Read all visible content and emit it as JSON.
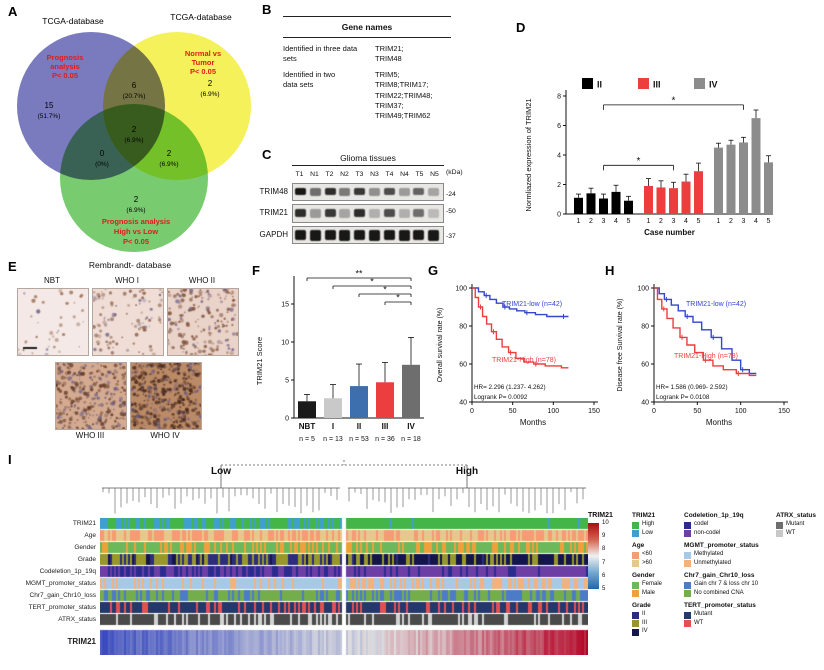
{
  "panels": {
    "a": "A",
    "b": "B",
    "c": "C",
    "d": "D",
    "e": "E",
    "f": "F",
    "g": "G",
    "h": "H",
    "i": "I"
  },
  "venn": {
    "top_left_title": "TCGA-database",
    "top_right_title": "TCGA-database",
    "blue_label": [
      "Prognosis",
      "analysis",
      "P< 0.05"
    ],
    "yellow_label": [
      "Normal vs",
      "Tumor",
      "P< 0.05"
    ],
    "green_label": [
      "Prognosis analysis",
      "High vs Low",
      "P< 0.05"
    ],
    "blue_only": [
      "15",
      "(51.7%)"
    ],
    "blue_yellow": [
      "6",
      "(20.7%)"
    ],
    "yellow_only": [
      "2",
      "(6.9%)"
    ],
    "center": [
      "2",
      "(6.9%)"
    ],
    "blue_green": [
      "0",
      "(0%)"
    ],
    "yellow_green": [
      "2",
      "(6.9%)"
    ],
    "green_only": [
      "2",
      "(6.9%)"
    ],
    "colors": {
      "blue": "#6b6db8",
      "yellow": "#f3ef3d",
      "green": "#62c257"
    }
  },
  "gene_table": {
    "header": "Gene names",
    "row1_label": "Identified in three data\nsets",
    "row1_genes": "TRIM21;\nTRIM48",
    "row2_label": "Identified in two\ndata sets",
    "row2_genes": "TRIM5;\nTRIM8;TRIM17;\nTRIM22;TRIM48;\nTRIM37;\nTRIM49;TRIM62"
  },
  "blot": {
    "title": "Glioma tissues",
    "kda": "(kDa)",
    "lanes": [
      "T1",
      "N1",
      "T2",
      "N2",
      "T3",
      "N3",
      "T4",
      "N4",
      "T5",
      "N5"
    ],
    "rows": [
      {
        "label": "TRIM48",
        "marker": "24",
        "intensities": [
          0.95,
          0.55,
          0.85,
          0.5,
          0.8,
          0.4,
          0.7,
          0.35,
          0.6,
          0.3
        ]
      },
      {
        "label": "TRIM21",
        "marker": "50",
        "intensities": [
          0.85,
          0.35,
          0.8,
          0.3,
          0.85,
          0.25,
          0.7,
          0.25,
          0.55,
          0.2
        ]
      },
      {
        "label": "GAPDH",
        "marker": "37",
        "intensities": [
          0.95,
          0.95,
          0.95,
          0.95,
          0.95,
          0.95,
          0.95,
          0.95,
          0.95,
          0.95
        ]
      }
    ]
  },
  "ihc": {
    "title": "Rembrandt- database",
    "images": [
      {
        "label": "NBT",
        "bg": "#f4e9e6",
        "dot": "#9a6a50",
        "density": 40
      },
      {
        "label": "WHO I",
        "bg": "#efddd6",
        "dot": "#8a5a40",
        "density": 100
      },
      {
        "label": "WHO II",
        "bg": "#ead3c8",
        "dot": "#7a4a33",
        "density": 170
      },
      {
        "label": "WHO III",
        "bg": "#d4ab91",
        "dot": "#5f3722",
        "density": 280
      },
      {
        "label": "WHO IV",
        "bg": "#bb8a66",
        "dot": "#45281a",
        "density": 400
      }
    ]
  },
  "chart_data": [
    {
      "id": "trim21_expression_bars",
      "type": "bar",
      "ylabel": "Normliazed expression of TRIM21",
      "xlabel": "Case number",
      "ylim": [
        0,
        8
      ],
      "yticks": [
        0,
        2,
        4,
        6,
        8
      ],
      "xticklabels": [
        "1",
        "2",
        "3",
        "4",
        "5"
      ],
      "groups": [
        {
          "name": "II",
          "color": "#000000",
          "values": [
            1.1,
            1.4,
            1.05,
            1.5,
            0.9
          ],
          "errors": [
            0.25,
            0.35,
            0.3,
            0.45,
            0.3
          ]
        },
        {
          "name": "III",
          "color": "#ec3e3e",
          "values": [
            1.9,
            1.8,
            1.75,
            2.2,
            2.9
          ],
          "errors": [
            0.5,
            0.45,
            0.4,
            0.5,
            0.55
          ]
        },
        {
          "name": "IV",
          "color": "#8c8c8c",
          "values": [
            4.5,
            4.7,
            4.85,
            6.5,
            3.5
          ],
          "errors": [
            0.3,
            0.3,
            0.35,
            0.55,
            0.45
          ]
        }
      ],
      "significance": [
        {
          "from_group": 0,
          "to_group": 1,
          "label": "*",
          "height": 3.3
        },
        {
          "from_group": 0,
          "to_group": 2,
          "label": "*",
          "height": 7.4
        }
      ]
    },
    {
      "id": "trim21_score_bars",
      "type": "bar",
      "ylabel": "TRIM21 Score",
      "ylim": [
        0,
        15
      ],
      "yticks": [
        0,
        5,
        10,
        15
      ],
      "categories": [
        "NBT",
        "I",
        "II",
        "III",
        "IV"
      ],
      "values": [
        2.2,
        2.6,
        4.2,
        4.7,
        7.0
      ],
      "errors": [
        0.9,
        1.8,
        2.9,
        2.6,
        3.6
      ],
      "colors": [
        "#1a1a1a",
        "#c9c9c9",
        "#3d6fae",
        "#ec3e3e",
        "#6e6e6e"
      ],
      "n_labels": [
        "n = 5",
        "n = 13",
        "n = 53",
        "n = 36",
        "n = 18"
      ],
      "significance": [
        {
          "from": 0,
          "to": 4,
          "label": "**"
        },
        {
          "from": 1,
          "to": 4,
          "label": "*"
        },
        {
          "from": 2,
          "to": 4,
          "label": "*"
        },
        {
          "from": 3,
          "to": 4,
          "label": "*"
        }
      ]
    },
    {
      "id": "overall_survival",
      "type": "line",
      "ylabel": "Overall survival rate (%)",
      "xlabel": "Months",
      "xlim": [
        0,
        150
      ],
      "xticks": [
        0,
        50,
        100,
        150
      ],
      "ylim": [
        40,
        100
      ],
      "yticks": [
        40,
        60,
        80,
        100
      ],
      "series": [
        {
          "name": "TRIM21-low (n=42)",
          "color": "#3346cc",
          "x": [
            0,
            8,
            15,
            22,
            30,
            38,
            46,
            55,
            65,
            78,
            92,
            110
          ],
          "y": [
            100,
            98,
            96,
            94,
            92,
            90,
            89,
            88,
            87,
            86,
            85,
            85
          ]
        },
        {
          "name": "TRIM21-High (n=78)",
          "color": "#ec3e3e",
          "x": [
            0,
            4,
            8,
            13,
            18,
            24,
            30,
            37,
            45,
            54,
            64,
            76,
            90,
            110
          ],
          "y": [
            100,
            95,
            90,
            85,
            81,
            77,
            73,
            69,
            66,
            63,
            61,
            60,
            59,
            58
          ]
        }
      ],
      "annotations": [
        "HR= 2.296 (1.237- 4.262)",
        "Logrank P= 0.0092"
      ]
    },
    {
      "id": "disease_free_survival",
      "type": "line",
      "ylabel": "Disease free Survival rate (%)",
      "xlabel": "Months",
      "xlim": [
        0,
        150
      ],
      "xticks": [
        0,
        50,
        100,
        150
      ],
      "ylim": [
        40,
        100
      ],
      "yticks": [
        40,
        60,
        80,
        100
      ],
      "series": [
        {
          "name": "TRIM21-low (n=42)",
          "color": "#3346cc",
          "x": [
            0,
            6,
            12,
            20,
            28,
            36,
            45,
            55,
            66,
            78,
            90,
            100,
            110
          ],
          "y": [
            100,
            97,
            94,
            91,
            88,
            85,
            82,
            78,
            74,
            68,
            62,
            57,
            55
          ]
        },
        {
          "name": "TRIM21-High (n=78)",
          "color": "#ec3e3e",
          "x": [
            0,
            4,
            9,
            15,
            22,
            30,
            38,
            47,
            57,
            68,
            80,
            95,
            110
          ],
          "y": [
            100,
            94,
            89,
            84,
            79,
            74,
            70,
            66,
            62,
            59,
            57,
            55,
            54
          ]
        }
      ],
      "annotations": [
        "HR= 1.586 (0.969- 2.592)",
        "Logrank P= 0.0108"
      ]
    }
  ],
  "heatmap": {
    "group_labels": [
      "Low",
      "High"
    ],
    "rows": [
      {
        "name": "TRIM21",
        "colors": [
          "#44b649",
          "#3fa0d0"
        ],
        "left": [
          0.55,
          0.45
        ],
        "right": [
          0.96,
          0.04
        ]
      },
      {
        "name": "Age",
        "colors": [
          "#f79b72",
          "#e6c98a"
        ],
        "left": [
          0.6,
          0.4
        ],
        "right": [
          0.55,
          0.45
        ]
      },
      {
        "name": "Gender",
        "colors": [
          "#6cb85b",
          "#f0a03a"
        ],
        "left": [
          0.6,
          0.4
        ],
        "right": [
          0.6,
          0.4
        ]
      },
      {
        "name": "Grade",
        "colors": [
          "#2d2d7c",
          "#97972a",
          "#15154d"
        ],
        "left": [
          0.4,
          0.5,
          0.1
        ],
        "right": [
          0.05,
          0.3,
          0.65
        ]
      },
      {
        "name": "Codeletion_1p_19q",
        "colors": [
          "#2b2b8f",
          "#6d3fa4"
        ],
        "left": [
          0.45,
          0.55
        ],
        "right": [
          0.2,
          0.8
        ]
      },
      {
        "name": "MGMT_promoter_status",
        "colors": [
          "#a6c9e8",
          "#f2b27e"
        ],
        "left": [
          0.72,
          0.28
        ],
        "right": [
          0.55,
          0.45
        ]
      },
      {
        "name": "Chr7_gain_Chr10_loss",
        "colors": [
          "#4d7cc7",
          "#74ad4c"
        ],
        "left": [
          0.35,
          0.65
        ],
        "right": [
          0.5,
          0.5
        ]
      },
      {
        "name": "TERT_promoter_status",
        "colors": [
          "#24386b",
          "#e05252"
        ],
        "left": [
          0.72,
          0.28
        ],
        "right": [
          0.68,
          0.32
        ]
      },
      {
        "name": "ATRX_status",
        "colors": [
          "#4a4a4a",
          "#d2d2d2"
        ],
        "left": [
          0.7,
          0.3
        ],
        "right": [
          0.82,
          0.18
        ]
      }
    ],
    "expression": {
      "name": "TRIM21",
      "left_range": [
        5.2,
        7.2
      ],
      "right_range": [
        7.2,
        9.8
      ],
      "scale": [
        5,
        10
      ]
    },
    "legend": {
      "colorbar": {
        "title": "TRIM21",
        "ticks": [
          "10",
          "9",
          "8",
          "7",
          "6",
          "5"
        ]
      },
      "columns": [
        [
          {
            "title": "TRIM21",
            "items": [
              {
                "label": "High",
                "color": "#44b649"
              },
              {
                "label": "Low",
                "color": "#3fa0d0"
              }
            ]
          },
          {
            "title": "Age",
            "items": [
              {
                "label": "<60",
                "color": "#f79b72"
              },
              {
                "label": ">60",
                "color": "#e6c98a"
              }
            ]
          },
          {
            "title": "Gender",
            "items": [
              {
                "label": "Female",
                "color": "#6cb85b"
              },
              {
                "label": "Male",
                "color": "#f0a03a"
              }
            ]
          },
          {
            "title": "Grade",
            "items": [
              {
                "label": "II",
                "color": "#2d2d7c"
              },
              {
                "label": "III",
                "color": "#97972a"
              },
              {
                "label": "IV",
                "color": "#15154d"
              }
            ]
          }
        ],
        [
          {
            "title": "Codeletion_1p_19q",
            "items": [
              {
                "label": "codel",
                "color": "#2b2b8f"
              },
              {
                "label": "non-codel",
                "color": "#6d3fa4"
              }
            ]
          },
          {
            "title": "MGMT_promoter_status",
            "items": [
              {
                "label": "Methylated",
                "color": "#a6c9e8"
              },
              {
                "label": "Unmethylated",
                "color": "#f2b27e"
              }
            ]
          },
          {
            "title": "Chr7_gain_Chr10_loss",
            "items": [
              {
                "label": "Gain chr 7 & loss chr 10",
                "color": "#4d7cc7"
              },
              {
                "label": "No combined CNA",
                "color": "#74ad4c"
              }
            ]
          },
          {
            "title": "TERT_promoter_status",
            "items": [
              {
                "label": "Mutant",
                "color": "#24386b"
              },
              {
                "label": "WT",
                "color": "#e05252"
              }
            ]
          }
        ],
        [
          {
            "title": "ATRX_status",
            "items": [
              {
                "label": "Mutant",
                "color": "#6e6e6e"
              },
              {
                "label": "WT",
                "color": "#c8c8c8"
              }
            ]
          }
        ]
      ]
    }
  }
}
